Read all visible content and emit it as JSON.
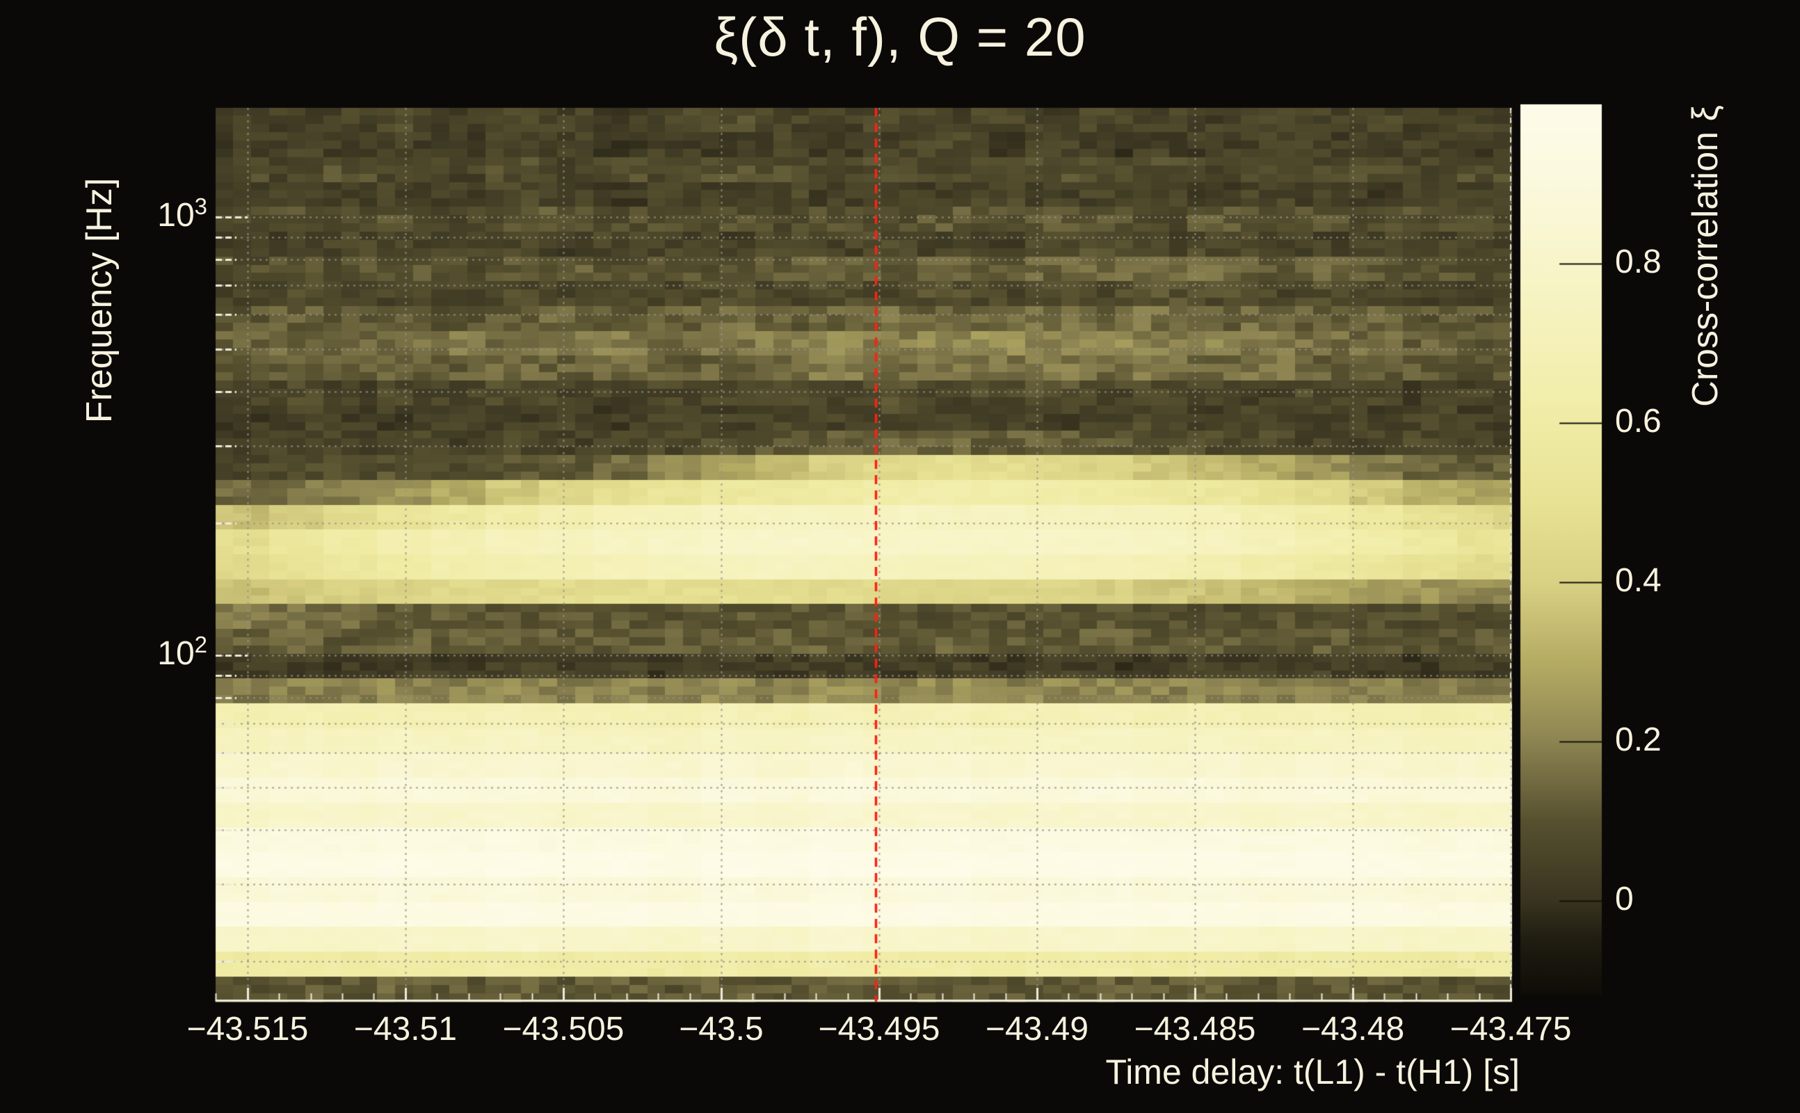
{
  "figure": {
    "background": "#0a0908",
    "text_color": "#f6f2de",
    "axis_color": "#efebdb",
    "grid_color": "rgba(150,148,138,0.85)"
  },
  "chart_data": {
    "type": "heatmap",
    "title": "ξ(δ t, f), Q = 20",
    "xlabel": "Time delay: t(L1) - t(H1) [s]",
    "ylabel": "Frequency [Hz]",
    "colorbar_label": "Cross-correlation ξ",
    "x_range_s": [
      -43.51601,
      -43.47498
    ],
    "y_scale": "log",
    "y_range_hz": [
      16.2,
      1775
    ],
    "color_range": [
      -0.12,
      1.0
    ],
    "x_major_ticks": [
      -43.515,
      -43.51,
      -43.505,
      -43.5,
      -43.495,
      -43.49,
      -43.485,
      -43.48,
      -43.475
    ],
    "x_major_tick_labels": [
      "−43.515",
      "−43.51",
      "−43.505",
      "−43.5",
      "−43.495",
      "−43.49",
      "−43.485",
      "−43.48",
      "−43.475"
    ],
    "x_minor_tick_step_s": 0.001,
    "y_major_ticks": [
      {
        "label_base": "10",
        "label_exp": "3",
        "hz": 1000
      },
      {
        "label_base": "10",
        "label_exp": "2",
        "hz": 100
      }
    ],
    "y_minor_ticks_hz": [
      900,
      800,
      700,
      600,
      500,
      400,
      300,
      200,
      90,
      80,
      70,
      60,
      50,
      40,
      30,
      20
    ],
    "colorbar_ticks": [
      {
        "value": 0.8,
        "label": "0.8"
      },
      {
        "value": 0.6,
        "label": "0.6"
      },
      {
        "value": 0.4,
        "label": "0.4"
      },
      {
        "value": 0.2,
        "label": "0.2"
      },
      {
        "value": 0.0,
        "label": "0"
      }
    ],
    "colormap_stops": [
      {
        "value": -0.12,
        "color": "#0d0c07"
      },
      {
        "value": -0.05,
        "color": "#201d11"
      },
      {
        "value": 0.0,
        "color": "#393420"
      },
      {
        "value": 0.1,
        "color": "#575130"
      },
      {
        "value": 0.2,
        "color": "#8d8452"
      },
      {
        "value": 0.3,
        "color": "#b5ac64"
      },
      {
        "value": 0.4,
        "color": "#d9d184"
      },
      {
        "value": 0.5,
        "color": "#e8e295"
      },
      {
        "value": 0.6,
        "color": "#f0eca5"
      },
      {
        "value": 0.7,
        "color": "#f5f1b8"
      },
      {
        "value": 0.8,
        "color": "#f8f5ca"
      },
      {
        "value": 0.9,
        "color": "#fbf9dd"
      },
      {
        "value": 1.0,
        "color": "#fefce9"
      }
    ],
    "marker_line": {
      "time_s": -43.4951,
      "color": "#ff2012",
      "style": "dashed"
    },
    "grid_time_bins": 24,
    "row_frequencies_hz": [
      1680,
      1470,
      1290,
      1130,
      990,
      870,
      760,
      665,
      585,
      512,
      450,
      395,
      345,
      300,
      265,
      232,
      203,
      178,
      156,
      136,
      120,
      105,
      92,
      80,
      70,
      61,
      54,
      47,
      41,
      36,
      32,
      28,
      24,
      21,
      19,
      17
    ],
    "values": [
      [
        0.06,
        0.04,
        0.05,
        0.07,
        0.04,
        0.06,
        0.05,
        0.03,
        0.06,
        0.08,
        0.05,
        0.04,
        0.06,
        0.05,
        0.07,
        0.04,
        0.06,
        0.05,
        0.04,
        0.07,
        0.05,
        0.06,
        0.04,
        0.05
      ],
      [
        0.03,
        0.05,
        0.02,
        0.04,
        0.03,
        0.05,
        0.04,
        0.02,
        0.04,
        0.03,
        0.05,
        0.03,
        0.04,
        0.06,
        0.03,
        0.05,
        0.02,
        0.04,
        0.03,
        0.05,
        0.04,
        0.03,
        0.05,
        0.03
      ],
      [
        0.08,
        0.06,
        0.09,
        0.07,
        0.05,
        0.08,
        0.06,
        0.09,
        0.07,
        0.1,
        0.08,
        0.06,
        0.09,
        0.07,
        0.08,
        0.1,
        0.07,
        0.09,
        0.06,
        0.08,
        0.07,
        0.09,
        0.06,
        0.08
      ],
      [
        0.04,
        0.06,
        0.03,
        0.05,
        0.04,
        0.06,
        0.05,
        0.03,
        0.05,
        0.04,
        0.06,
        0.04,
        0.05,
        0.03,
        0.06,
        0.04,
        0.05,
        0.07,
        0.04,
        0.06,
        0.05,
        0.03,
        0.05,
        0.04
      ],
      [
        0.07,
        0.09,
        0.08,
        0.1,
        0.07,
        0.09,
        0.11,
        0.08,
        0.1,
        0.09,
        0.07,
        0.1,
        0.08,
        0.11,
        0.09,
        0.12,
        0.1,
        0.08,
        0.11,
        0.09,
        0.1,
        0.08,
        0.09,
        0.07
      ],
      [
        0.05,
        0.03,
        0.06,
        0.04,
        0.05,
        0.07,
        0.04,
        0.06,
        0.05,
        0.03,
        0.06,
        0.05,
        0.07,
        0.05,
        0.04,
        0.06,
        0.08,
        0.05,
        0.07,
        0.06,
        0.04,
        0.06,
        0.05,
        0.06
      ],
      [
        0.08,
        0.1,
        0.09,
        0.11,
        0.08,
        0.1,
        0.12,
        0.09,
        0.11,
        0.1,
        0.12,
        0.14,
        0.11,
        0.13,
        0.12,
        0.14,
        0.16,
        0.13,
        0.15,
        0.12,
        0.14,
        0.11,
        0.1,
        0.09
      ],
      [
        0.05,
        0.07,
        0.04,
        0.06,
        0.05,
        0.07,
        0.06,
        0.08,
        0.05,
        0.07,
        0.06,
        0.08,
        0.07,
        0.09,
        0.06,
        0.08,
        0.07,
        0.09,
        0.08,
        0.06,
        0.08,
        0.07,
        0.05,
        0.06
      ],
      [
        0.1,
        0.12,
        0.11,
        0.13,
        0.1,
        0.12,
        0.14,
        0.11,
        0.13,
        0.15,
        0.12,
        0.14,
        0.16,
        0.13,
        0.15,
        0.17,
        0.14,
        0.16,
        0.13,
        0.15,
        0.12,
        0.14,
        0.11,
        0.1
      ],
      [
        0.13,
        0.15,
        0.14,
        0.16,
        0.18,
        0.15,
        0.17,
        0.19,
        0.16,
        0.18,
        0.2,
        0.22,
        0.19,
        0.21,
        0.23,
        0.2,
        0.22,
        0.19,
        0.21,
        0.18,
        0.16,
        0.15,
        0.13,
        0.12
      ],
      [
        0.1,
        0.12,
        0.11,
        0.13,
        0.12,
        0.14,
        0.13,
        0.15,
        0.12,
        0.14,
        0.16,
        0.18,
        0.15,
        0.17,
        0.16,
        0.18,
        0.15,
        0.17,
        0.14,
        0.16,
        0.13,
        0.12,
        0.11,
        0.1
      ],
      [
        0.05,
        0.07,
        0.04,
        0.06,
        0.05,
        0.07,
        0.06,
        0.04,
        0.06,
        0.05,
        0.07,
        0.06,
        0.08,
        0.06,
        0.07,
        0.09,
        0.06,
        0.08,
        0.07,
        0.05,
        0.07,
        0.06,
        0.04,
        0.05
      ],
      [
        0.03,
        0.05,
        0.04,
        0.03,
        0.05,
        0.04,
        0.06,
        0.03,
        0.05,
        0.04,
        0.06,
        0.05,
        0.07,
        0.05,
        0.06,
        0.04,
        0.05,
        0.07,
        0.04,
        0.06,
        0.05,
        0.04,
        0.06,
        0.04
      ],
      [
        0.04,
        0.06,
        0.05,
        0.07,
        0.04,
        0.06,
        0.05,
        0.07,
        0.06,
        0.08,
        0.1,
        0.12,
        0.14,
        0.15,
        0.13,
        0.12,
        0.1,
        0.09,
        0.08,
        0.07,
        0.06,
        0.05,
        0.07,
        0.05
      ],
      [
        0.06,
        0.08,
        0.07,
        0.09,
        0.08,
        0.1,
        0.12,
        0.15,
        0.22,
        0.28,
        0.34,
        0.4,
        0.45,
        0.48,
        0.47,
        0.45,
        0.42,
        0.38,
        0.34,
        0.3,
        0.24,
        0.18,
        0.14,
        0.12
      ],
      [
        0.14,
        0.17,
        0.2,
        0.24,
        0.3,
        0.38,
        0.44,
        0.48,
        0.52,
        0.56,
        0.58,
        0.6,
        0.62,
        0.63,
        0.62,
        0.61,
        0.6,
        0.58,
        0.55,
        0.52,
        0.46,
        0.38,
        0.32,
        0.28
      ],
      [
        0.35,
        0.4,
        0.46,
        0.52,
        0.58,
        0.62,
        0.66,
        0.7,
        0.72,
        0.74,
        0.75,
        0.76,
        0.76,
        0.75,
        0.75,
        0.74,
        0.73,
        0.72,
        0.7,
        0.66,
        0.62,
        0.56,
        0.5,
        0.45
      ],
      [
        0.48,
        0.54,
        0.6,
        0.65,
        0.68,
        0.72,
        0.74,
        0.76,
        0.78,
        0.79,
        0.8,
        0.8,
        0.79,
        0.79,
        0.78,
        0.78,
        0.77,
        0.76,
        0.74,
        0.7,
        0.66,
        0.62,
        0.58,
        0.52
      ],
      [
        0.45,
        0.5,
        0.56,
        0.6,
        0.64,
        0.66,
        0.68,
        0.7,
        0.72,
        0.73,
        0.74,
        0.74,
        0.73,
        0.72,
        0.72,
        0.71,
        0.7,
        0.68,
        0.66,
        0.62,
        0.58,
        0.54,
        0.5,
        0.46
      ],
      [
        0.35,
        0.38,
        0.4,
        0.42,
        0.44,
        0.45,
        0.46,
        0.47,
        0.48,
        0.48,
        0.47,
        0.46,
        0.45,
        0.44,
        0.43,
        0.42,
        0.4,
        0.38,
        0.36,
        0.33,
        0.3,
        0.27,
        0.24,
        0.22
      ],
      [
        0.18,
        0.16,
        0.14,
        0.13,
        0.12,
        0.11,
        0.12,
        0.11,
        0.1,
        0.11,
        0.1,
        0.11,
        0.1,
        0.09,
        0.1,
        0.09,
        0.1,
        0.09,
        0.08,
        0.09,
        0.08,
        0.09,
        0.08,
        0.08
      ],
      [
        0.12,
        0.14,
        0.11,
        0.13,
        0.12,
        0.14,
        0.12,
        0.11,
        0.13,
        0.12,
        0.14,
        0.13,
        0.11,
        0.13,
        0.12,
        0.11,
        0.13,
        0.11,
        0.12,
        0.1,
        0.12,
        0.11,
        0.1,
        0.11
      ],
      [
        0.03,
        0.04,
        0.02,
        0.04,
        0.03,
        0.05,
        0.03,
        0.04,
        0.02,
        0.04,
        0.03,
        0.04,
        0.03,
        0.05,
        0.03,
        0.04,
        0.02,
        0.03,
        0.04,
        0.02,
        0.04,
        0.03,
        0.02,
        0.03
      ],
      [
        0.18,
        0.2,
        0.19,
        0.21,
        0.2,
        0.22,
        0.2,
        0.21,
        0.19,
        0.22,
        0.2,
        0.23,
        0.21,
        0.22,
        0.2,
        0.21,
        0.22,
        0.2,
        0.21,
        0.19,
        0.21,
        0.2,
        0.18,
        0.19
      ],
      [
        0.66,
        0.68,
        0.67,
        0.69,
        0.68,
        0.7,
        0.68,
        0.69,
        0.67,
        0.7,
        0.68,
        0.71,
        0.69,
        0.7,
        0.68,
        0.69,
        0.7,
        0.68,
        0.69,
        0.67,
        0.69,
        0.68,
        0.66,
        0.67
      ],
      [
        0.73,
        0.75,
        0.74,
        0.76,
        0.75,
        0.77,
        0.75,
        0.76,
        0.74,
        0.77,
        0.75,
        0.78,
        0.76,
        0.77,
        0.75,
        0.76,
        0.77,
        0.75,
        0.76,
        0.74,
        0.76,
        0.75,
        0.73,
        0.74
      ],
      [
        0.8,
        0.82,
        0.81,
        0.83,
        0.82,
        0.84,
        0.82,
        0.83,
        0.81,
        0.84,
        0.82,
        0.85,
        0.83,
        0.84,
        0.82,
        0.83,
        0.84,
        0.82,
        0.83,
        0.81,
        0.83,
        0.82,
        0.8,
        0.81
      ],
      [
        0.86,
        0.88,
        0.87,
        0.89,
        0.88,
        0.9,
        0.88,
        0.89,
        0.87,
        0.9,
        0.88,
        0.91,
        0.89,
        0.9,
        0.88,
        0.89,
        0.9,
        0.88,
        0.89,
        0.87,
        0.89,
        0.88,
        0.86,
        0.87
      ],
      [
        0.78,
        0.8,
        0.79,
        0.81,
        0.8,
        0.82,
        0.8,
        0.81,
        0.79,
        0.82,
        0.8,
        0.83,
        0.81,
        0.82,
        0.8,
        0.81,
        0.82,
        0.8,
        0.81,
        0.79,
        0.81,
        0.8,
        0.78,
        0.79
      ],
      [
        0.9,
        0.92,
        0.91,
        0.93,
        0.92,
        0.94,
        0.92,
        0.93,
        0.91,
        0.94,
        0.92,
        0.95,
        0.93,
        0.94,
        0.92,
        0.93,
        0.94,
        0.92,
        0.93,
        0.91,
        0.93,
        0.92,
        0.9,
        0.91
      ],
      [
        0.95,
        0.96,
        0.95,
        0.97,
        0.96,
        0.98,
        0.96,
        0.97,
        0.95,
        0.98,
        0.96,
        0.99,
        0.97,
        0.98,
        0.96,
        0.97,
        0.98,
        0.96,
        0.97,
        0.95,
        0.97,
        0.96,
        0.94,
        0.95
      ],
      [
        0.86,
        0.88,
        0.87,
        0.89,
        0.88,
        0.9,
        0.88,
        0.89,
        0.87,
        0.9,
        0.88,
        0.91,
        0.89,
        0.9,
        0.88,
        0.89,
        0.9,
        0.88,
        0.89,
        0.87,
        0.89,
        0.88,
        0.86,
        0.87
      ],
      [
        0.93,
        0.94,
        0.93,
        0.95,
        0.94,
        0.96,
        0.94,
        0.95,
        0.93,
        0.96,
        0.94,
        0.97,
        0.95,
        0.96,
        0.94,
        0.95,
        0.96,
        0.94,
        0.95,
        0.93,
        0.95,
        0.94,
        0.92,
        0.93
      ],
      [
        0.78,
        0.79,
        0.78,
        0.8,
        0.79,
        0.81,
        0.79,
        0.8,
        0.78,
        0.81,
        0.79,
        0.82,
        0.8,
        0.81,
        0.79,
        0.8,
        0.81,
        0.79,
        0.8,
        0.78,
        0.8,
        0.79,
        0.77,
        0.78
      ],
      [
        0.58,
        0.6,
        0.59,
        0.61,
        0.6,
        0.62,
        0.6,
        0.61,
        0.59,
        0.62,
        0.6,
        0.63,
        0.61,
        0.62,
        0.6,
        0.61,
        0.62,
        0.6,
        0.61,
        0.59,
        0.61,
        0.6,
        0.58,
        0.59
      ],
      [
        0.1,
        0.12,
        0.1,
        0.13,
        0.11,
        0.14,
        0.11,
        0.12,
        0.1,
        0.13,
        0.11,
        0.14,
        0.12,
        0.13,
        0.11,
        0.12,
        0.13,
        0.11,
        0.12,
        0.1,
        0.12,
        0.11,
        0.1,
        0.1
      ]
    ]
  }
}
